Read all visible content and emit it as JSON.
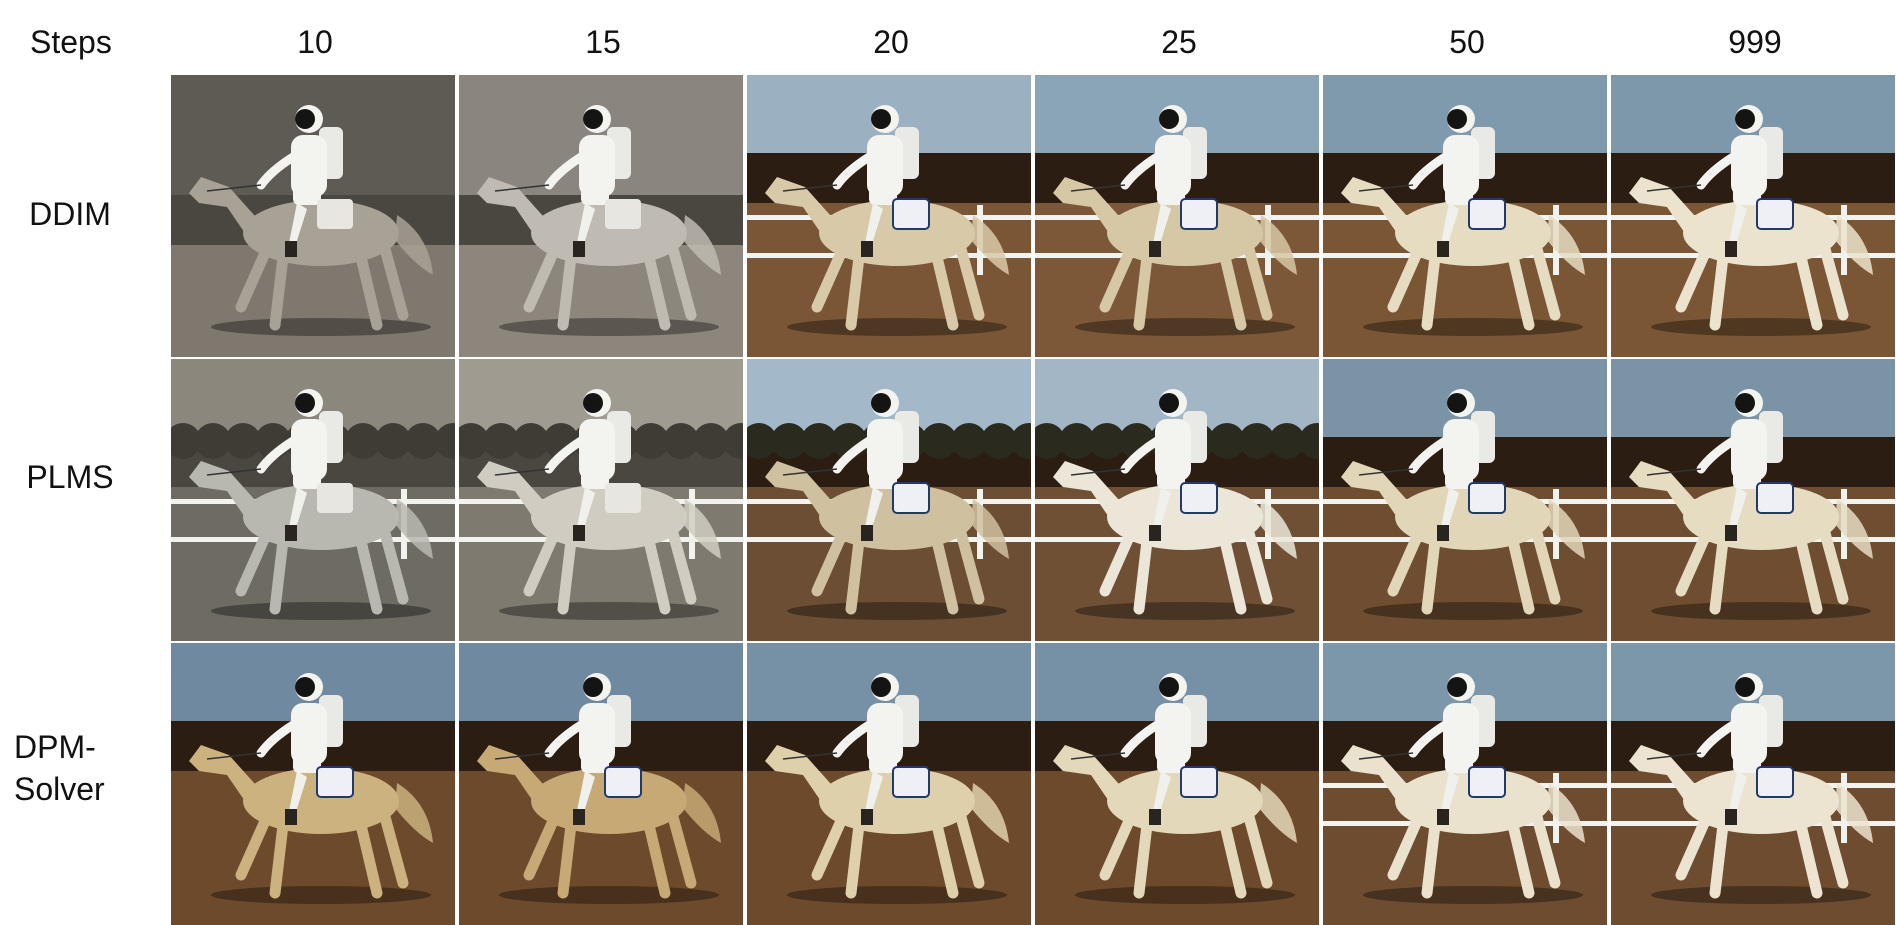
{
  "figure": {
    "corner_label": "Steps",
    "columns": [
      "10",
      "15",
      "20",
      "25",
      "50",
      "999"
    ],
    "rows": [
      {
        "label": "DDIM",
        "tiles": [
          {
            "palette": "sepia",
            "horse": "#a8a196",
            "sky": "#5e5a54",
            "ground": "#7e786e",
            "fence": false,
            "trees": false
          },
          {
            "palette": "sepia",
            "horse": "#c0bbb2",
            "sky": "#8a857e",
            "ground": "#8c867c",
            "fence": false,
            "trees": false
          },
          {
            "palette": "color",
            "horse": "#d8c9a8",
            "sky": "#9bb0c0",
            "ground": "#7a5636",
            "fence": true,
            "trees": false
          },
          {
            "palette": "color",
            "horse": "#d6c7a5",
            "sky": "#8aa4b8",
            "ground": "#7c5838",
            "fence": true,
            "trees": false
          },
          {
            "palette": "color",
            "horse": "#e6dcc2",
            "sky": "#7f99ad",
            "ground": "#7a5634",
            "fence": true,
            "trees": false
          },
          {
            "palette": "color",
            "horse": "#ebe3cd",
            "sky": "#7d97ab",
            "ground": "#7a5634",
            "fence": true,
            "trees": false
          }
        ]
      },
      {
        "label": "PLMS",
        "tiles": [
          {
            "palette": "sepia",
            "horse": "#b9b8b0",
            "sky": "#8b877c",
            "ground": "#6e6b63",
            "fence": true,
            "trees": true
          },
          {
            "palette": "sepia",
            "horse": "#d0ccc1",
            "sky": "#a09b90",
            "ground": "#7e7a70",
            "fence": true,
            "trees": true
          },
          {
            "palette": "color",
            "horse": "#cfc0a0",
            "sky": "#a3b9c9",
            "ground": "#6b4e33",
            "fence": true,
            "trees": true
          },
          {
            "palette": "color",
            "horse": "#ebe6d8",
            "sky": "#a3b6c6",
            "ground": "#6f5035",
            "fence": true,
            "trees": true
          },
          {
            "palette": "color",
            "horse": "#e2d6b8",
            "sky": "#7a93a7",
            "ground": "#6e4d31",
            "fence": true,
            "trees": false
          },
          {
            "palette": "color",
            "horse": "#e6dcc2",
            "sky": "#7a93a7",
            "ground": "#6e4d31",
            "fence": true,
            "trees": false
          }
        ]
      },
      {
        "label": "DPM-\nSolver",
        "tiles": [
          {
            "palette": "color",
            "horse": "#cbb27e",
            "sky": "#6f8aa0",
            "ground": "#6d4a2c",
            "fence": false,
            "trees": false
          },
          {
            "palette": "color",
            "horse": "#c7a976",
            "sky": "#6f8aa0",
            "ground": "#6d4a2c",
            "fence": false,
            "trees": false
          },
          {
            "palette": "color",
            "horse": "#dfd0ac",
            "sky": "#7690a6",
            "ground": "#6d4a2c",
            "fence": false,
            "trees": false
          },
          {
            "palette": "color",
            "horse": "#e4d8bb",
            "sky": "#7690a6",
            "ground": "#6d4a2c",
            "fence": false,
            "trees": false
          },
          {
            "palette": "color",
            "horse": "#eae2cd",
            "sky": "#7c96aa",
            "ground": "#6e4c30",
            "fence": true,
            "trees": false
          },
          {
            "palette": "color",
            "horse": "#ece4d0",
            "sky": "#7c96aa",
            "ground": "#6e4c30",
            "fence": true,
            "trees": false
          }
        ]
      }
    ]
  }
}
